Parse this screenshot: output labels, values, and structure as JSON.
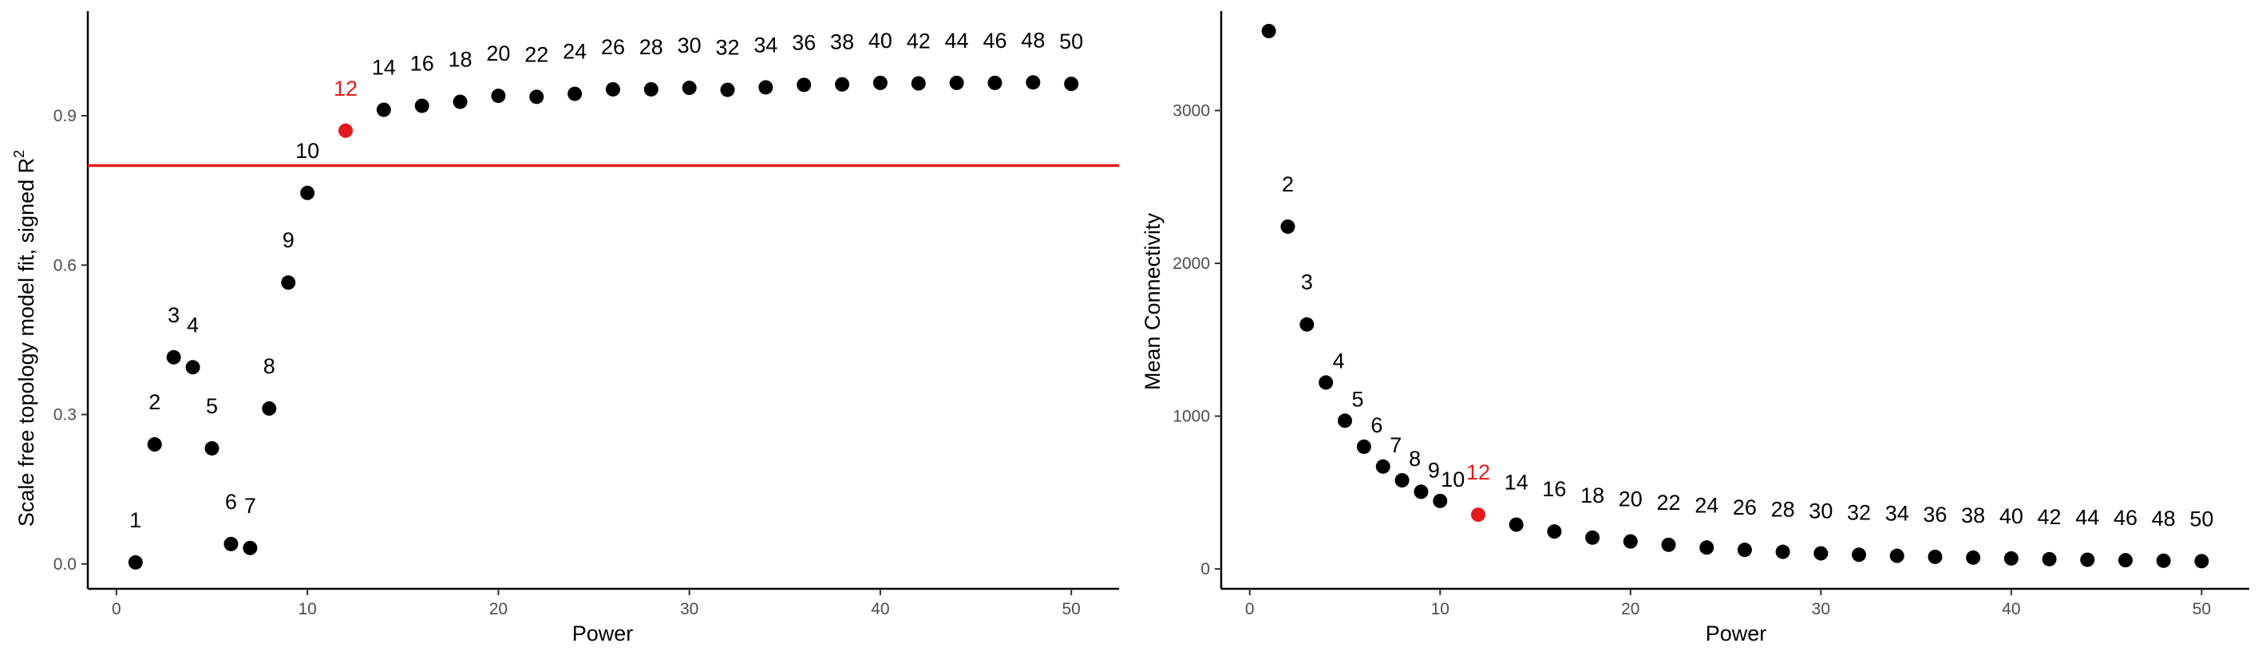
{
  "colors": {
    "point": "#000000",
    "highlight": "#e41a1c",
    "threshold_line": "#e41a1c",
    "axis": "#000000",
    "tick_label": "#4d4d4d"
  },
  "chart_data": [
    {
      "type": "scatter",
      "title": "",
      "xlabel": "Power",
      "ylabel": "Scale free topology model fit, signed  R",
      "ylabel_superscript": "2",
      "xlim": [
        -1.5,
        52.5
      ],
      "ylim": [
        -0.05,
        1.11
      ],
      "xticks": [
        0,
        10,
        20,
        30,
        40,
        50
      ],
      "yticks": [
        0.0,
        0.3,
        0.6,
        0.9
      ],
      "ytick_labels": [
        "0.0",
        "0.3",
        "0.6",
        "0.9"
      ],
      "grid": false,
      "hline": 0.8,
      "highlight_power": 12,
      "points": [
        {
          "x": 1,
          "y": 0.003,
          "label": "1"
        },
        {
          "x": 2,
          "y": 0.24,
          "label": "2"
        },
        {
          "x": 3,
          "y": 0.415,
          "label": "3"
        },
        {
          "x": 4,
          "y": 0.395,
          "label": "4"
        },
        {
          "x": 5,
          "y": 0.232,
          "label": "5"
        },
        {
          "x": 6,
          "y": 0.04,
          "label": "6"
        },
        {
          "x": 7,
          "y": 0.032,
          "label": "7"
        },
        {
          "x": 8,
          "y": 0.312,
          "label": "8"
        },
        {
          "x": 9,
          "y": 0.565,
          "label": "9"
        },
        {
          "x": 10,
          "y": 0.745,
          "label": "10"
        },
        {
          "x": 12,
          "y": 0.87,
          "label": "12"
        },
        {
          "x": 14,
          "y": 0.912,
          "label": "14"
        },
        {
          "x": 16,
          "y": 0.92,
          "label": "16"
        },
        {
          "x": 18,
          "y": 0.928,
          "label": "18"
        },
        {
          "x": 20,
          "y": 0.94,
          "label": "20"
        },
        {
          "x": 22,
          "y": 0.938,
          "label": "22"
        },
        {
          "x": 24,
          "y": 0.944,
          "label": "24"
        },
        {
          "x": 26,
          "y": 0.953,
          "label": "26"
        },
        {
          "x": 28,
          "y": 0.953,
          "label": "28"
        },
        {
          "x": 30,
          "y": 0.956,
          "label": "30"
        },
        {
          "x": 32,
          "y": 0.952,
          "label": "32"
        },
        {
          "x": 34,
          "y": 0.957,
          "label": "34"
        },
        {
          "x": 36,
          "y": 0.962,
          "label": "36"
        },
        {
          "x": 38,
          "y": 0.963,
          "label": "38"
        },
        {
          "x": 40,
          "y": 0.966,
          "label": "40"
        },
        {
          "x": 42,
          "y": 0.965,
          "label": "42"
        },
        {
          "x": 44,
          "y": 0.966,
          "label": "44"
        },
        {
          "x": 46,
          "y": 0.966,
          "label": "46"
        },
        {
          "x": 48,
          "y": 0.967,
          "label": "48"
        },
        {
          "x": 50,
          "y": 0.964,
          "label": "50"
        }
      ]
    },
    {
      "type": "scatter",
      "title": "",
      "xlabel": "Power",
      "ylabel": "Mean Connectivity",
      "xlim": [
        -1.5,
        52.5
      ],
      "ylim": [
        -130,
        3650
      ],
      "xticks": [
        0,
        10,
        20,
        30,
        40,
        50
      ],
      "yticks": [
        0,
        1000,
        2000,
        3000
      ],
      "ytick_labels": [
        "0",
        "1000",
        "2000",
        "3000"
      ],
      "grid": false,
      "highlight_power": 12,
      "points": [
        {
          "x": 1,
          "y": 3520,
          "label": ""
        },
        {
          "x": 2,
          "y": 2240,
          "label": "2"
        },
        {
          "x": 3,
          "y": 1600,
          "label": "3"
        },
        {
          "x": 4,
          "y": 1220,
          "label": "4"
        },
        {
          "x": 5,
          "y": 970,
          "label": "5"
        },
        {
          "x": 6,
          "y": 800,
          "label": "6"
        },
        {
          "x": 7,
          "y": 670,
          "label": "7"
        },
        {
          "x": 8,
          "y": 580,
          "label": "8"
        },
        {
          "x": 9,
          "y": 505,
          "label": "9"
        },
        {
          "x": 10,
          "y": 445,
          "label": "10"
        },
        {
          "x": 12,
          "y": 355,
          "label": "12"
        },
        {
          "x": 14,
          "y": 290,
          "label": "14"
        },
        {
          "x": 16,
          "y": 245,
          "label": "16"
        },
        {
          "x": 18,
          "y": 205,
          "label": "18"
        },
        {
          "x": 20,
          "y": 180,
          "label": "20"
        },
        {
          "x": 22,
          "y": 158,
          "label": "22"
        },
        {
          "x": 24,
          "y": 140,
          "label": "24"
        },
        {
          "x": 26,
          "y": 125,
          "label": "26"
        },
        {
          "x": 28,
          "y": 112,
          "label": "28"
        },
        {
          "x": 30,
          "y": 102,
          "label": "30"
        },
        {
          "x": 32,
          "y": 93,
          "label": "32"
        },
        {
          "x": 34,
          "y": 86,
          "label": "34"
        },
        {
          "x": 36,
          "y": 79,
          "label": "36"
        },
        {
          "x": 38,
          "y": 74,
          "label": "38"
        },
        {
          "x": 40,
          "y": 69,
          "label": "40"
        },
        {
          "x": 42,
          "y": 64,
          "label": "42"
        },
        {
          "x": 44,
          "y": 60,
          "label": "44"
        },
        {
          "x": 46,
          "y": 57,
          "label": "46"
        },
        {
          "x": 48,
          "y": 54,
          "label": "48"
        },
        {
          "x": 50,
          "y": 51,
          "label": "50"
        }
      ]
    }
  ]
}
